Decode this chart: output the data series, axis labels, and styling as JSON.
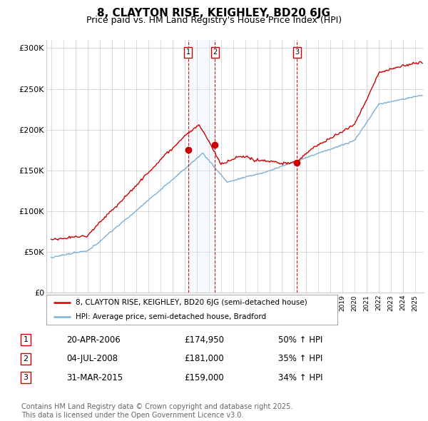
{
  "title": "8, CLAYTON RISE, KEIGHLEY, BD20 6JG",
  "subtitle": "Price paid vs. HM Land Registry's House Price Index (HPI)",
  "title_fontsize": 11,
  "subtitle_fontsize": 9,
  "bg_color": "#ffffff",
  "plot_bg_color": "#ffffff",
  "grid_color": "#cccccc",
  "ylim": [
    0,
    310000
  ],
  "yticks": [
    0,
    50000,
    100000,
    150000,
    200000,
    250000,
    300000
  ],
  "ytick_labels": [
    "£0",
    "£50K",
    "£100K",
    "£150K",
    "£200K",
    "£250K",
    "£300K"
  ],
  "red_line_color": "#cc0000",
  "blue_line_color": "#7bafd4",
  "shade_color": "#ddeeff",
  "vline_color": "#cc0000",
  "sale_year_floats": [
    2006.3,
    2008.5,
    2015.25
  ],
  "sale_prices": [
    174950,
    181000,
    159000
  ],
  "sale_labels": [
    "1",
    "2",
    "3"
  ],
  "legend_items": [
    "8, CLAYTON RISE, KEIGHLEY, BD20 6JG (semi-detached house)",
    "HPI: Average price, semi-detached house, Bradford"
  ],
  "table_rows": [
    [
      "1",
      "20-APR-2006",
      "£174,950",
      "50% ↑ HPI"
    ],
    [
      "2",
      "04-JUL-2008",
      "£181,000",
      "35% ↑ HPI"
    ],
    [
      "3",
      "31-MAR-2015",
      "£159,000",
      "34% ↑ HPI"
    ]
  ],
  "footnote": "Contains HM Land Registry data © Crown copyright and database right 2025.\nThis data is licensed under the Open Government Licence v3.0.",
  "footnote_fontsize": 7
}
